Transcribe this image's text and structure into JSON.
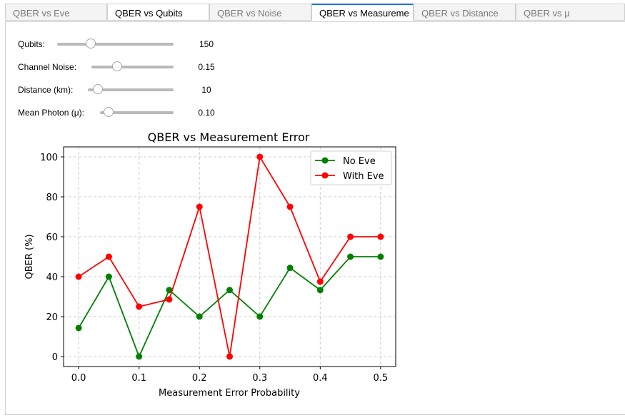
{
  "tabs": [
    {
      "label": "QBER vs Eve",
      "state": "inactive"
    },
    {
      "label": "QBER vs Qubits",
      "state": "black"
    },
    {
      "label": "QBER vs Noise",
      "state": "inactive"
    },
    {
      "label": "QBER vs Measureme",
      "state": "selected"
    },
    {
      "label": "QBER vs Distance",
      "state": "inactive"
    },
    {
      "label": "QBER vs μ",
      "state": "inactive"
    }
  ],
  "controls": {
    "qubits": {
      "label": "Qubits:",
      "value": "150"
    },
    "noise": {
      "label": "Channel Noise:",
      "value": "0.15"
    },
    "distance": {
      "label": "Distance (km):",
      "value": "10"
    },
    "photon": {
      "label": "Mean Photon (μ):",
      "value": "0.10"
    }
  },
  "colors": {
    "no_eve": "#008000",
    "with_eve": "#ff0000",
    "grid": "#cccccc",
    "tab_accent": "#1e73d2"
  },
  "chart_data": {
    "type": "line",
    "title": "QBER vs Measurement Error",
    "xlabel": "Measurement Error Probability",
    "ylabel": "QBER (%)",
    "xlim": [
      -0.025,
      0.525
    ],
    "ylim": [
      -5,
      105
    ],
    "xticks": [
      "0.0",
      "0.1",
      "0.2",
      "0.3",
      "0.4",
      "0.5"
    ],
    "yticks": [
      "0",
      "20",
      "40",
      "60",
      "80",
      "100"
    ],
    "grid": true,
    "legend": "top-right",
    "x": [
      0.0,
      0.05,
      0.1,
      0.15,
      0.2,
      0.25,
      0.3,
      0.35,
      0.4,
      0.45,
      0.5
    ],
    "series": [
      {
        "name": "No Eve",
        "values": [
          14.3,
          40,
          0,
          33.3,
          20,
          33.3,
          20,
          44.4,
          33.3,
          50,
          50
        ]
      },
      {
        "name": "With Eve",
        "values": [
          40,
          50,
          25,
          28.6,
          75,
          0,
          100,
          75,
          37.5,
          60,
          60
        ]
      }
    ]
  }
}
